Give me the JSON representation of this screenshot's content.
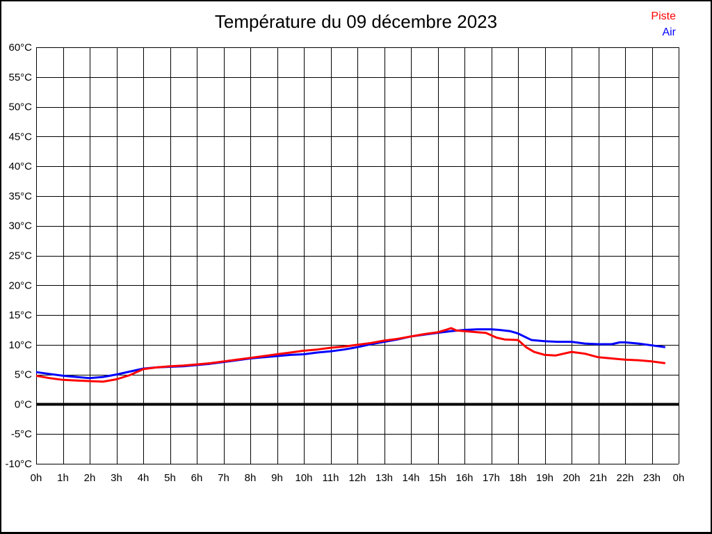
{
  "page": {
    "background": "#ffffff",
    "frame_border_color": "#000000"
  },
  "chart_data": {
    "type": "line",
    "title": "Température du 09 décembre 2023",
    "xlabel": "",
    "ylabel": "",
    "xlim": [
      0,
      24
    ],
    "ylim": [
      -10,
      60
    ],
    "grid": true,
    "grid_color": "#000000",
    "zero_line": true,
    "zero_line_value": 0,
    "zero_line_color": "#000000",
    "legend_position": "top-right",
    "x_ticks": [
      0,
      1,
      2,
      3,
      4,
      5,
      6,
      7,
      8,
      9,
      10,
      11,
      12,
      13,
      14,
      15,
      16,
      17,
      18,
      19,
      20,
      21,
      22,
      23,
      24
    ],
    "x_tick_labels": [
      "0h",
      "1h",
      "2h",
      "3h",
      "4h",
      "5h",
      "6h",
      "7h",
      "8h",
      "9h",
      "10h",
      "11h",
      "12h",
      "13h",
      "14h",
      "15h",
      "16h",
      "17h",
      "18h",
      "19h",
      "20h",
      "21h",
      "22h",
      "23h",
      "0h"
    ],
    "y_ticks": [
      -10,
      -5,
      0,
      5,
      10,
      15,
      20,
      25,
      30,
      35,
      40,
      45,
      50,
      55,
      60
    ],
    "y_tick_labels": [
      "-10°C",
      "-5°C",
      "0°C",
      "5°C",
      "10°C",
      "15°C",
      "20°C",
      "25°C",
      "30°C",
      "35°C",
      "40°C",
      "45°C",
      "50°C",
      "55°C",
      "60°C"
    ],
    "series": [
      {
        "name": "Piste",
        "color": "#ff0000",
        "points": [
          [
            0,
            4.8
          ],
          [
            0.5,
            4.4
          ],
          [
            1,
            4.1
          ],
          [
            1.5,
            4.0
          ],
          [
            2,
            3.9
          ],
          [
            2.5,
            3.8
          ],
          [
            3,
            4.2
          ],
          [
            3.5,
            4.9
          ],
          [
            4,
            5.9
          ],
          [
            4.5,
            6.2
          ],
          [
            5,
            6.4
          ],
          [
            5.5,
            6.5
          ],
          [
            6,
            6.7
          ],
          [
            6.5,
            6.9
          ],
          [
            7,
            7.2
          ],
          [
            7.5,
            7.5
          ],
          [
            8,
            7.8
          ],
          [
            8.5,
            8.1
          ],
          [
            9,
            8.4
          ],
          [
            9.5,
            8.7
          ],
          [
            10,
            9.0
          ],
          [
            10.5,
            9.2
          ],
          [
            11,
            9.5
          ],
          [
            11.5,
            9.7
          ],
          [
            12,
            10.0
          ],
          [
            12.5,
            10.3
          ],
          [
            13,
            10.7
          ],
          [
            13.5,
            11.0
          ],
          [
            14,
            11.4
          ],
          [
            14.5,
            11.8
          ],
          [
            15,
            12.1
          ],
          [
            15.3,
            12.5
          ],
          [
            15.5,
            12.8
          ],
          [
            15.7,
            12.4
          ],
          [
            16,
            12.3
          ],
          [
            16.5,
            12.1
          ],
          [
            16.8,
            12.0
          ],
          [
            17.2,
            11.2
          ],
          [
            17.5,
            10.9
          ],
          [
            18,
            10.8
          ],
          [
            18.3,
            9.6
          ],
          [
            18.6,
            8.8
          ],
          [
            19,
            8.3
          ],
          [
            19.4,
            8.2
          ],
          [
            20,
            8.8
          ],
          [
            20.5,
            8.5
          ],
          [
            21,
            7.9
          ],
          [
            21.5,
            7.7
          ],
          [
            22,
            7.5
          ],
          [
            22.5,
            7.4
          ],
          [
            23,
            7.2
          ],
          [
            23.5,
            6.9
          ]
        ]
      },
      {
        "name": "Air",
        "color": "#0000ff",
        "points": [
          [
            0,
            5.4
          ],
          [
            0.5,
            5.1
          ],
          [
            1,
            4.8
          ],
          [
            1.5,
            4.6
          ],
          [
            2,
            4.4
          ],
          [
            2.5,
            4.6
          ],
          [
            3,
            5.0
          ],
          [
            3.5,
            5.5
          ],
          [
            4,
            6.0
          ],
          [
            4.5,
            6.2
          ],
          [
            5,
            6.3
          ],
          [
            5.5,
            6.4
          ],
          [
            6,
            6.6
          ],
          [
            6.5,
            6.8
          ],
          [
            7,
            7.1
          ],
          [
            7.5,
            7.4
          ],
          [
            8,
            7.7
          ],
          [
            8.5,
            7.9
          ],
          [
            9,
            8.1
          ],
          [
            9.5,
            8.3
          ],
          [
            10,
            8.4
          ],
          [
            10.5,
            8.7
          ],
          [
            11,
            8.9
          ],
          [
            11.5,
            9.2
          ],
          [
            12,
            9.6
          ],
          [
            12.5,
            10.1
          ],
          [
            13,
            10.5
          ],
          [
            13.5,
            10.9
          ],
          [
            14,
            11.4
          ],
          [
            14.5,
            11.7
          ],
          [
            15,
            12.0
          ],
          [
            15.5,
            12.3
          ],
          [
            16,
            12.5
          ],
          [
            16.5,
            12.6
          ],
          [
            17,
            12.6
          ],
          [
            17.3,
            12.5
          ],
          [
            17.7,
            12.3
          ],
          [
            18,
            11.9
          ],
          [
            18.5,
            10.8
          ],
          [
            19,
            10.6
          ],
          [
            19.5,
            10.5
          ],
          [
            20,
            10.5
          ],
          [
            20.5,
            10.2
          ],
          [
            21,
            10.1
          ],
          [
            21.5,
            10.1
          ],
          [
            21.8,
            10.4
          ],
          [
            22,
            10.4
          ],
          [
            22.5,
            10.2
          ],
          [
            23,
            9.9
          ],
          [
            23.5,
            9.6
          ]
        ]
      }
    ]
  }
}
